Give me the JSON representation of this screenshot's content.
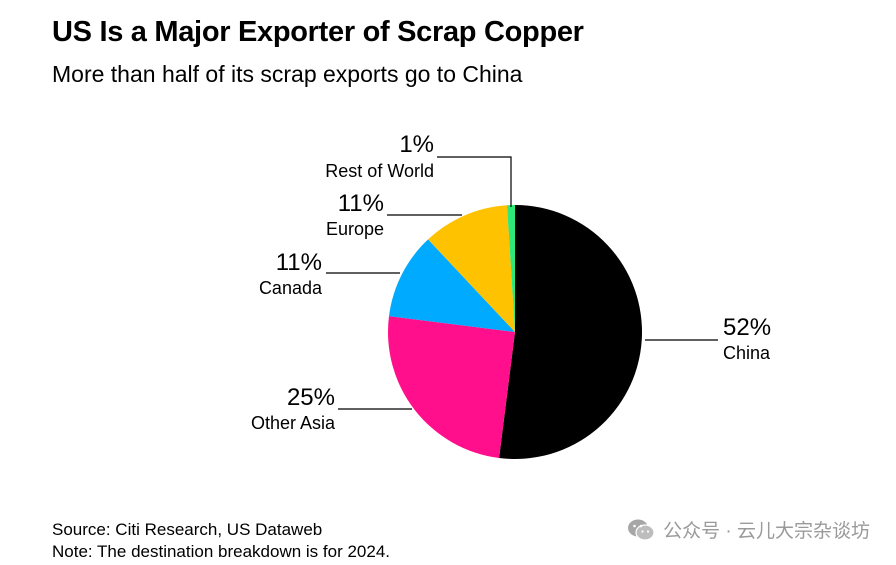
{
  "title": "US Is a Major Exporter of Scrap Copper",
  "subtitle": "More than half of its scrap exports go to China",
  "chart_data": {
    "type": "pie",
    "title": "US Is a Major Exporter of Scrap Copper",
    "subtitle": "More than half of its scrap exports go to China",
    "slices": [
      {
        "label": "China",
        "value": 52,
        "value_label": "52%",
        "color": "#000000"
      },
      {
        "label": "Other Asia",
        "value": 25,
        "value_label": "25%",
        "color": "#ff0f8c"
      },
      {
        "label": "Canada",
        "value": 11,
        "value_label": "11%",
        "color": "#00aaff"
      },
      {
        "label": "Europe",
        "value": 11,
        "value_label": "11%",
        "color": "#ffc200"
      },
      {
        "label": "Rest of World",
        "value": 1,
        "value_label": "1%",
        "color": "#2ee87a"
      }
    ],
    "legend": "none (direct labels)"
  },
  "footer": {
    "source": "Source: Citi Research, US Dataweb",
    "note": "Note: The destination breakdown is for 2024."
  },
  "watermark": {
    "text": "公众号 · 云儿大宗杂谈坊",
    "icon": "wechat-icon",
    "color": "#9a9a9a"
  }
}
